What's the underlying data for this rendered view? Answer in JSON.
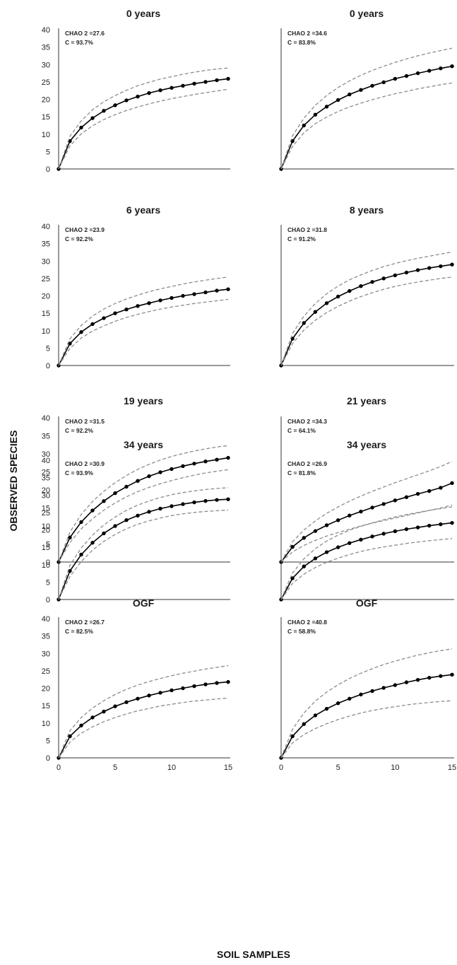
{
  "figure": {
    "ylabel": "OBSERVED SPECIES",
    "xlabel": "SOIL SAMPLES"
  },
  "colors": {
    "observed_line": "#000000",
    "confidence_bounds": "#8c8c8c",
    "axis": "#333333"
  },
  "chart_data": [
    {
      "type": "line",
      "title": "0 years",
      "annotation": [
        "CHAO 2 =27.6",
        "C = 93.7%"
      ],
      "xlim": [
        0,
        15
      ],
      "ylim": [
        0,
        40
      ],
      "yticks": [
        0,
        5,
        10,
        15,
        20,
        25,
        30,
        35,
        40
      ],
      "xticks": [],
      "x": [
        0,
        1,
        2,
        3,
        4,
        5,
        6,
        7,
        8,
        9,
        10,
        11,
        12,
        13,
        14,
        15
      ],
      "series": [
        {
          "values": [
            0,
            8,
            11.9,
            14.6,
            16.7,
            18.3,
            19.7,
            20.8,
            21.8,
            22.6,
            23.3,
            23.9,
            24.5,
            25,
            25.5,
            25.9
          ],
          "style": "solid-markers"
        },
        {
          "values": [
            0,
            9.4,
            13.8,
            17,
            19.3,
            21.1,
            22.6,
            23.9,
            24.9,
            25.8,
            26.5,
            27.2,
            27.8,
            28.3,
            28.7,
            29
          ],
          "style": "dashed"
        },
        {
          "values": [
            0,
            6.6,
            10.1,
            12.4,
            14.2,
            15.6,
            16.8,
            17.8,
            18.7,
            19.5,
            20.2,
            20.8,
            21.4,
            21.9,
            22.4,
            22.9
          ],
          "style": "dashed"
        }
      ]
    },
    {
      "type": "line",
      "title": "0 years",
      "annotation": [
        "CHAO 2 =34.6",
        "C = 83.8%"
      ],
      "xlim": [
        0,
        15
      ],
      "ylim": [
        0,
        40
      ],
      "yticks": [],
      "xticks": [],
      "x": [
        0,
        1,
        2,
        3,
        4,
        5,
        6,
        7,
        8,
        9,
        10,
        11,
        12,
        13,
        14,
        15
      ],
      "series": [
        {
          "values": [
            0,
            8,
            12.5,
            15.6,
            17.9,
            19.8,
            21.4,
            22.7,
            23.9,
            24.9,
            25.9,
            26.7,
            27.5,
            28.2,
            28.9,
            29.5
          ],
          "style": "solid-markers"
        },
        {
          "values": [
            0,
            9.5,
            14.6,
            18.3,
            21.1,
            23.4,
            25.3,
            26.9,
            28.3,
            29.5,
            30.6,
            31.6,
            32.5,
            33.3,
            34,
            34.7
          ],
          "style": "dashed"
        },
        {
          "values": [
            0,
            6.5,
            10.4,
            13,
            14.9,
            16.5,
            17.8,
            18.9,
            19.9,
            20.8,
            21.6,
            22.3,
            23,
            23.6,
            24.2,
            24.7
          ],
          "style": "dashed"
        }
      ]
    },
    {
      "type": "line",
      "title": "6 years",
      "annotation": [
        "CHAO 2 =23.9",
        "C = 92.2%"
      ],
      "xlim": [
        0,
        15
      ],
      "ylim": [
        0,
        40
      ],
      "yticks": [
        0,
        5,
        10,
        15,
        20,
        25,
        30,
        35,
        40
      ],
      "xticks": [],
      "x": [
        0,
        1,
        2,
        3,
        4,
        5,
        6,
        7,
        8,
        9,
        10,
        11,
        12,
        13,
        14,
        15
      ],
      "series": [
        {
          "values": [
            0,
            6.3,
            9.6,
            11.9,
            13.6,
            15,
            16.1,
            17.1,
            17.9,
            18.7,
            19.4,
            20,
            20.5,
            21,
            21.5,
            21.9
          ],
          "style": "solid-markers"
        },
        {
          "values": [
            0,
            7.7,
            11.5,
            14.2,
            16.2,
            17.8,
            19.1,
            20.2,
            21.2,
            22,
            22.7,
            23.4,
            24,
            24.5,
            25,
            25.4
          ],
          "style": "dashed"
        },
        {
          "values": [
            0,
            4.9,
            7.9,
            9.9,
            11.4,
            12.7,
            13.8,
            14.7,
            15.5,
            16.2,
            16.8,
            17.3,
            17.8,
            18.2,
            18.6,
            19
          ],
          "style": "dashed"
        }
      ]
    },
    {
      "type": "line",
      "title": "8 years",
      "annotation": [
        "CHAO 2 =31.8",
        "C = 91.2%"
      ],
      "xlim": [
        0,
        15
      ],
      "ylim": [
        0,
        40
      ],
      "yticks": [],
      "xticks": [],
      "x": [
        0,
        1,
        2,
        3,
        4,
        5,
        6,
        7,
        8,
        9,
        10,
        11,
        12,
        13,
        14,
        15
      ],
      "series": [
        {
          "values": [
            0,
            7.7,
            12.2,
            15.4,
            17.9,
            19.8,
            21.4,
            22.8,
            24,
            25,
            25.9,
            26.7,
            27.4,
            28,
            28.5,
            29
          ],
          "style": "solid-markers"
        },
        {
          "values": [
            0,
            9.2,
            14.2,
            17.8,
            20.6,
            22.8,
            24.6,
            26,
            27.3,
            28.4,
            29.3,
            30.1,
            30.8,
            31.4,
            32,
            32.6
          ],
          "style": "dashed"
        },
        {
          "values": [
            0,
            6.3,
            10.2,
            13,
            15.2,
            17,
            18.5,
            19.8,
            20.9,
            21.9,
            22.7,
            23.4,
            24,
            24.5,
            25,
            25.4
          ],
          "style": "dashed"
        }
      ]
    },
    {
      "type": "line",
      "title": "19 years",
      "annotation": [
        "CHAO 2 =31.5",
        "C = 92.2%"
      ],
      "xlim": [
        0,
        15
      ],
      "ylim": [
        0,
        40
      ],
      "yticks": [
        0,
        5,
        10,
        15,
        20,
        25,
        30,
        35,
        40
      ],
      "xticks": [],
      "x": [
        0,
        1,
        2,
        3,
        4,
        5,
        6,
        7,
        8,
        9,
        10,
        11,
        12,
        13,
        14,
        15
      ],
      "series": [
        {
          "values": [
            0,
            6.8,
            11.1,
            14.3,
            16.9,
            19.1,
            20.9,
            22.5,
            23.8,
            24.9,
            25.8,
            26.6,
            27.3,
            27.9,
            28.4,
            28.9
          ],
          "style": "solid-markers"
        },
        {
          "values": [
            0,
            8.3,
            13.2,
            16.8,
            19.6,
            22,
            24,
            25.7,
            27.1,
            28.3,
            29.3,
            30.1,
            30.8,
            31.4,
            31.9,
            32.3
          ],
          "style": "dashed"
        },
        {
          "values": [
            0,
            5.4,
            9.2,
            12,
            14.4,
            16.4,
            18.1,
            19.5,
            20.7,
            21.7,
            22.6,
            23.4,
            24.1,
            24.7,
            25.2,
            25.6
          ],
          "style": "dashed"
        }
      ]
    },
    {
      "type": "line",
      "title": "21 years",
      "annotation": [
        "CHAO 2 =34.3",
        "C = 64.1%"
      ],
      "xlim": [
        0,
        15
      ],
      "ylim": [
        0,
        40
      ],
      "yticks": [],
      "xticks": [],
      "x": [
        0,
        1,
        2,
        3,
        4,
        5,
        6,
        7,
        8,
        9,
        10,
        11,
        12,
        13,
        14,
        15
      ],
      "series": [
        {
          "values": [
            0,
            4.2,
            6.7,
            8.6,
            10.2,
            11.6,
            12.9,
            14,
            15.1,
            16.1,
            17.1,
            18,
            18.9,
            19.7,
            20.6,
            21.9
          ],
          "style": "solid-markers"
        },
        {
          "values": [
            0,
            5.6,
            8.9,
            11.4,
            13.5,
            15.3,
            16.9,
            18.3,
            19.6,
            20.8,
            22,
            23.1,
            24.2,
            25.3,
            26.5,
            27.9
          ],
          "style": "dashed"
        },
        {
          "values": [
            0,
            2.8,
            4.6,
            6,
            7.2,
            8.2,
            9.1,
            10,
            10.8,
            11.5,
            12.2,
            12.9,
            13.6,
            14.3,
            15,
            15.8
          ],
          "style": "dashed"
        }
      ]
    },
    {
      "type": "line",
      "title": "34 years",
      "annotation": [
        "CHAO 2 =30.9",
        "C = 93.9%"
      ],
      "xlim": [
        0,
        15
      ],
      "ylim": [
        0,
        40
      ],
      "yticks": [
        0,
        5,
        10,
        15,
        20,
        25,
        30,
        35,
        40
      ],
      "xticks": [],
      "x": [
        0,
        1,
        2,
        3,
        4,
        5,
        6,
        7,
        8,
        9,
        10,
        11,
        12,
        13,
        14,
        15
      ],
      "series": [
        {
          "values": [
            0,
            8.2,
            12.9,
            16.3,
            19,
            21.1,
            22.8,
            24.1,
            25.2,
            26.1,
            26.8,
            27.4,
            27.9,
            28.3,
            28.6,
            28.8
          ],
          "style": "solid-markers"
        },
        {
          "values": [
            0,
            9.8,
            14.8,
            18.5,
            21.4,
            23.7,
            25.6,
            27.1,
            28.3,
            29.3,
            30.1,
            30.7,
            31.2,
            31.6,
            31.9,
            32.1
          ],
          "style": "dashed"
        },
        {
          "values": [
            0,
            6.6,
            10.9,
            14.2,
            16.7,
            18.7,
            20.3,
            21.6,
            22.6,
            23.4,
            24.1,
            24.6,
            25,
            25.3,
            25.5,
            25.7
          ],
          "style": "dashed"
        }
      ]
    },
    {
      "type": "line",
      "title": "34 years",
      "annotation": [
        "CHAO 2 =26.9",
        "C = 81.8%"
      ],
      "xlim": [
        0,
        15
      ],
      "ylim": [
        0,
        40
      ],
      "yticks": [],
      "xticks": [],
      "x": [
        0,
        1,
        2,
        3,
        4,
        5,
        6,
        7,
        8,
        9,
        10,
        11,
        12,
        13,
        14,
        15
      ],
      "series": [
        {
          "values": [
            0,
            6.1,
            9.5,
            11.8,
            13.6,
            15,
            16.2,
            17.2,
            18.1,
            18.9,
            19.6,
            20.2,
            20.7,
            21.2,
            21.6,
            22
          ],
          "style": "solid-markers"
        },
        {
          "values": [
            0,
            7.6,
            11.7,
            14.6,
            16.8,
            18.5,
            19.9,
            21,
            22,
            22.9,
            23.7,
            24.4,
            25,
            25.6,
            26.1,
            26.6
          ],
          "style": "dashed"
        },
        {
          "values": [
            0,
            4.6,
            7.3,
            9.2,
            10.7,
            11.9,
            12.9,
            13.8,
            14.5,
            15.1,
            15.6,
            16.1,
            16.5,
            16.9,
            17.2,
            17.5
          ],
          "style": "dashed"
        }
      ]
    },
    {
      "type": "line",
      "title": "OGF",
      "annotation": [
        "CHAO 2 =26.7",
        "C = 82.5%"
      ],
      "xlim": [
        0,
        15
      ],
      "ylim": [
        0,
        40
      ],
      "yticks": [
        0,
        5,
        10,
        15,
        20,
        25,
        30,
        35,
        40
      ],
      "xticks": [
        0,
        5,
        10,
        15
      ],
      "x": [
        0,
        1,
        2,
        3,
        4,
        5,
        6,
        7,
        8,
        9,
        10,
        11,
        12,
        13,
        14,
        15
      ],
      "series": [
        {
          "values": [
            0,
            6.2,
            9.3,
            11.6,
            13.3,
            14.8,
            16,
            17,
            17.9,
            18.7,
            19.4,
            20,
            20.6,
            21.1,
            21.5,
            21.8
          ],
          "style": "solid-markers"
        },
        {
          "values": [
            0,
            7.8,
            11.6,
            14.3,
            16.4,
            18.2,
            19.7,
            20.9,
            21.9,
            22.8,
            23.6,
            24.3,
            24.9,
            25.5,
            26,
            26.5
          ],
          "style": "dashed"
        },
        {
          "values": [
            0,
            4.5,
            7.1,
            8.9,
            10.4,
            11.6,
            12.6,
            13.5,
            14.2,
            14.9,
            15.4,
            15.9,
            16.3,
            16.6,
            16.9,
            17.2
          ],
          "style": "dashed"
        }
      ]
    },
    {
      "type": "line",
      "title": "OGF",
      "annotation": [
        "CHAO 2 =40.8",
        "C = 58.8%"
      ],
      "xlim": [
        0,
        15
      ],
      "ylim": [
        0,
        40
      ],
      "yticks": [],
      "xticks": [
        0,
        5,
        10,
        15
      ],
      "x": [
        0,
        1,
        2,
        3,
        4,
        5,
        6,
        7,
        8,
        9,
        10,
        11,
        12,
        13,
        14,
        15
      ],
      "series": [
        {
          "values": [
            0,
            6.2,
            9.7,
            12.2,
            14.1,
            15.7,
            17,
            18.2,
            19.2,
            20.1,
            20.9,
            21.7,
            22.4,
            23,
            23.5,
            23.9
          ],
          "style": "solid-markers"
        },
        {
          "values": [
            0,
            8.2,
            12.9,
            16.3,
            18.9,
            21,
            22.8,
            24.3,
            25.6,
            26.8,
            27.8,
            28.7,
            29.5,
            30.2,
            30.8,
            31.3
          ],
          "style": "dashed"
        },
        {
          "values": [
            0,
            4.3,
            6.7,
            8.4,
            9.8,
            11,
            12,
            12.9,
            13.6,
            14.2,
            14.7,
            15.2,
            15.6,
            15.9,
            16.2,
            16.4
          ],
          "style": "dashed"
        }
      ]
    }
  ]
}
